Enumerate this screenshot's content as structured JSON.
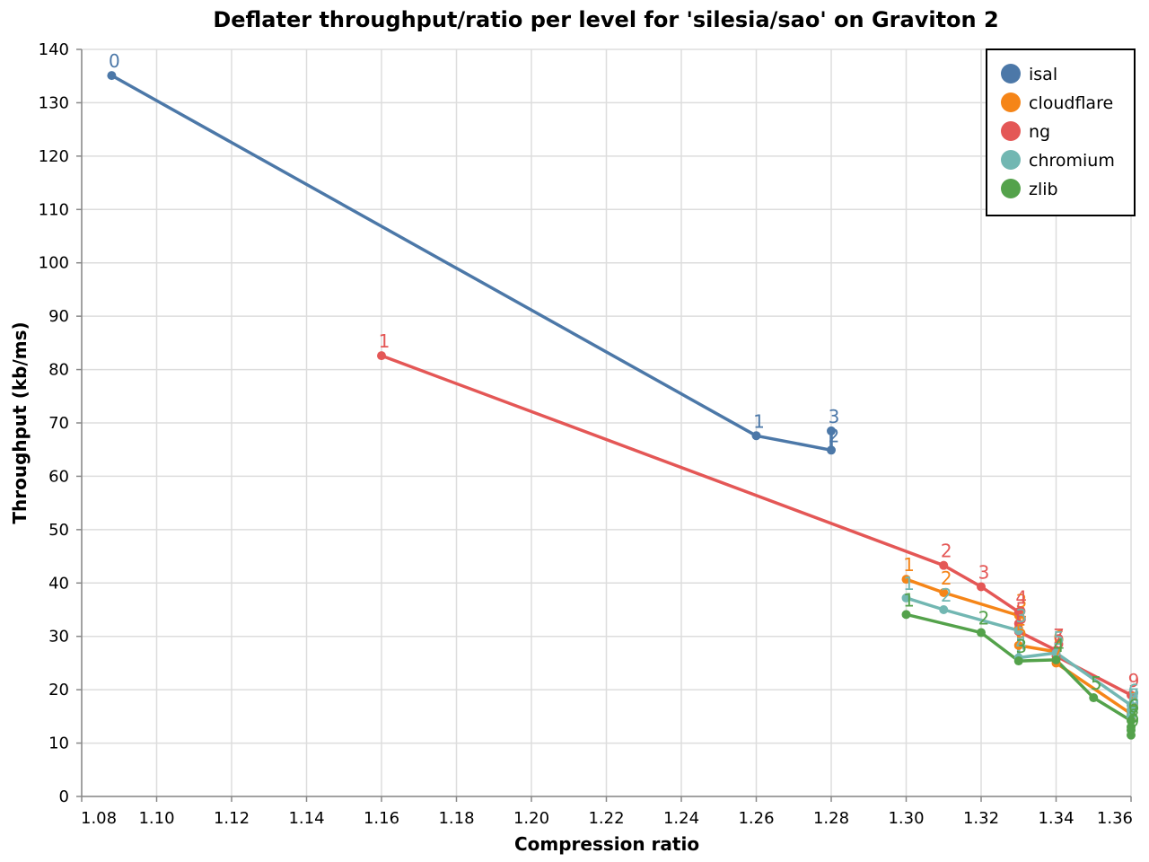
{
  "chart_data": {
    "type": "line",
    "title": "Deflater throughput/ratio per level for 'silesia/sao' on Graviton 2",
    "xlabel": "Compression ratio",
    "ylabel": "Throughput (kb/ms)",
    "xlim": [
      1.08,
      1.36
    ],
    "ylim": [
      0,
      140
    ],
    "x_ticks": [
      "1.08",
      "1.10",
      "1.12",
      "1.14",
      "1.16",
      "1.18",
      "1.20",
      "1.22",
      "1.24",
      "1.26",
      "1.28",
      "1.30",
      "1.32",
      "1.34",
      "1.36"
    ],
    "y_ticks": [
      "0",
      "10",
      "20",
      "30",
      "40",
      "50",
      "60",
      "70",
      "80",
      "90",
      "100",
      "110",
      "120",
      "130",
      "140"
    ],
    "grid": true,
    "legend_position": "top-right",
    "series": [
      {
        "name": "isal",
        "color": "#4c78a8",
        "points": [
          {
            "x": 1.088,
            "y": 135.1,
            "label": "0"
          },
          {
            "x": 1.26,
            "y": 67.6,
            "label": "1"
          },
          {
            "x": 1.28,
            "y": 64.9,
            "label": "2"
          },
          {
            "x": 1.28,
            "y": 68.5,
            "label": "3"
          }
        ]
      },
      {
        "name": "cloudflare",
        "color": "#f58518",
        "points": [
          {
            "x": 1.3,
            "y": 40.7,
            "label": "1"
          },
          {
            "x": 1.31,
            "y": 38.2,
            "label": "2"
          },
          {
            "x": 1.33,
            "y": 33.9,
            "label": "3"
          },
          {
            "x": 1.33,
            "y": 31.5,
            "label": "4"
          },
          {
            "x": 1.33,
            "y": 28.3,
            "label": "5"
          },
          {
            "x": 1.34,
            "y": 27.1,
            "label": "6"
          },
          {
            "x": 1.34,
            "y": 25.0,
            "label": "7"
          },
          {
            "x": 1.36,
            "y": 15.5,
            "label": "8"
          },
          {
            "x": 1.36,
            "y": 14.7,
            "label": "9"
          }
        ]
      },
      {
        "name": "ng",
        "color": "#e45756",
        "points": [
          {
            "x": 1.16,
            "y": 82.6,
            "label": "1"
          },
          {
            "x": 1.31,
            "y": 43.3,
            "label": "2"
          },
          {
            "x": 1.32,
            "y": 39.3,
            "label": "3"
          },
          {
            "x": 1.33,
            "y": 34.6,
            "label": "4"
          },
          {
            "x": 1.33,
            "y": 32.4,
            "label": "5"
          },
          {
            "x": 1.33,
            "y": 30.9,
            "label": "6"
          },
          {
            "x": 1.34,
            "y": 27.4,
            "label": "7"
          },
          {
            "x": 1.34,
            "y": 26.3,
            "label": "8"
          },
          {
            "x": 1.36,
            "y": 19.0,
            "label": "9"
          }
        ]
      },
      {
        "name": "chromium",
        "color": "#72b7b2",
        "points": [
          {
            "x": 1.3,
            "y": 37.2,
            "label": "1"
          },
          {
            "x": 1.31,
            "y": 35.0,
            "label": "2"
          },
          {
            "x": 1.33,
            "y": 31.1,
            "label": "3"
          },
          {
            "x": 1.33,
            "y": 26.0,
            "label": "4"
          },
          {
            "x": 1.34,
            "y": 26.9,
            "label": "5"
          },
          {
            "x": 1.36,
            "y": 17.1,
            "label": "6"
          },
          {
            "x": 1.36,
            "y": 16.2,
            "label": "7"
          },
          {
            "x": 1.36,
            "y": 15.3,
            "label": "8"
          },
          {
            "x": 1.36,
            "y": 14.9,
            "label": "9"
          }
        ]
      },
      {
        "name": "zlib",
        "color": "#54a24b",
        "points": [
          {
            "x": 1.3,
            "y": 34.1,
            "label": "1"
          },
          {
            "x": 1.32,
            "y": 30.7,
            "label": "2"
          },
          {
            "x": 1.33,
            "y": 25.4,
            "label": "3"
          },
          {
            "x": 1.34,
            "y": 25.6,
            "label": "4"
          },
          {
            "x": 1.35,
            "y": 18.5,
            "label": "5"
          },
          {
            "x": 1.36,
            "y": 14.2,
            "label": "6"
          },
          {
            "x": 1.36,
            "y": 13.0,
            "label": "7"
          },
          {
            "x": 1.36,
            "y": 12.4,
            "label": "8"
          },
          {
            "x": 1.36,
            "y": 11.5,
            "label": "9"
          }
        ]
      }
    ]
  }
}
